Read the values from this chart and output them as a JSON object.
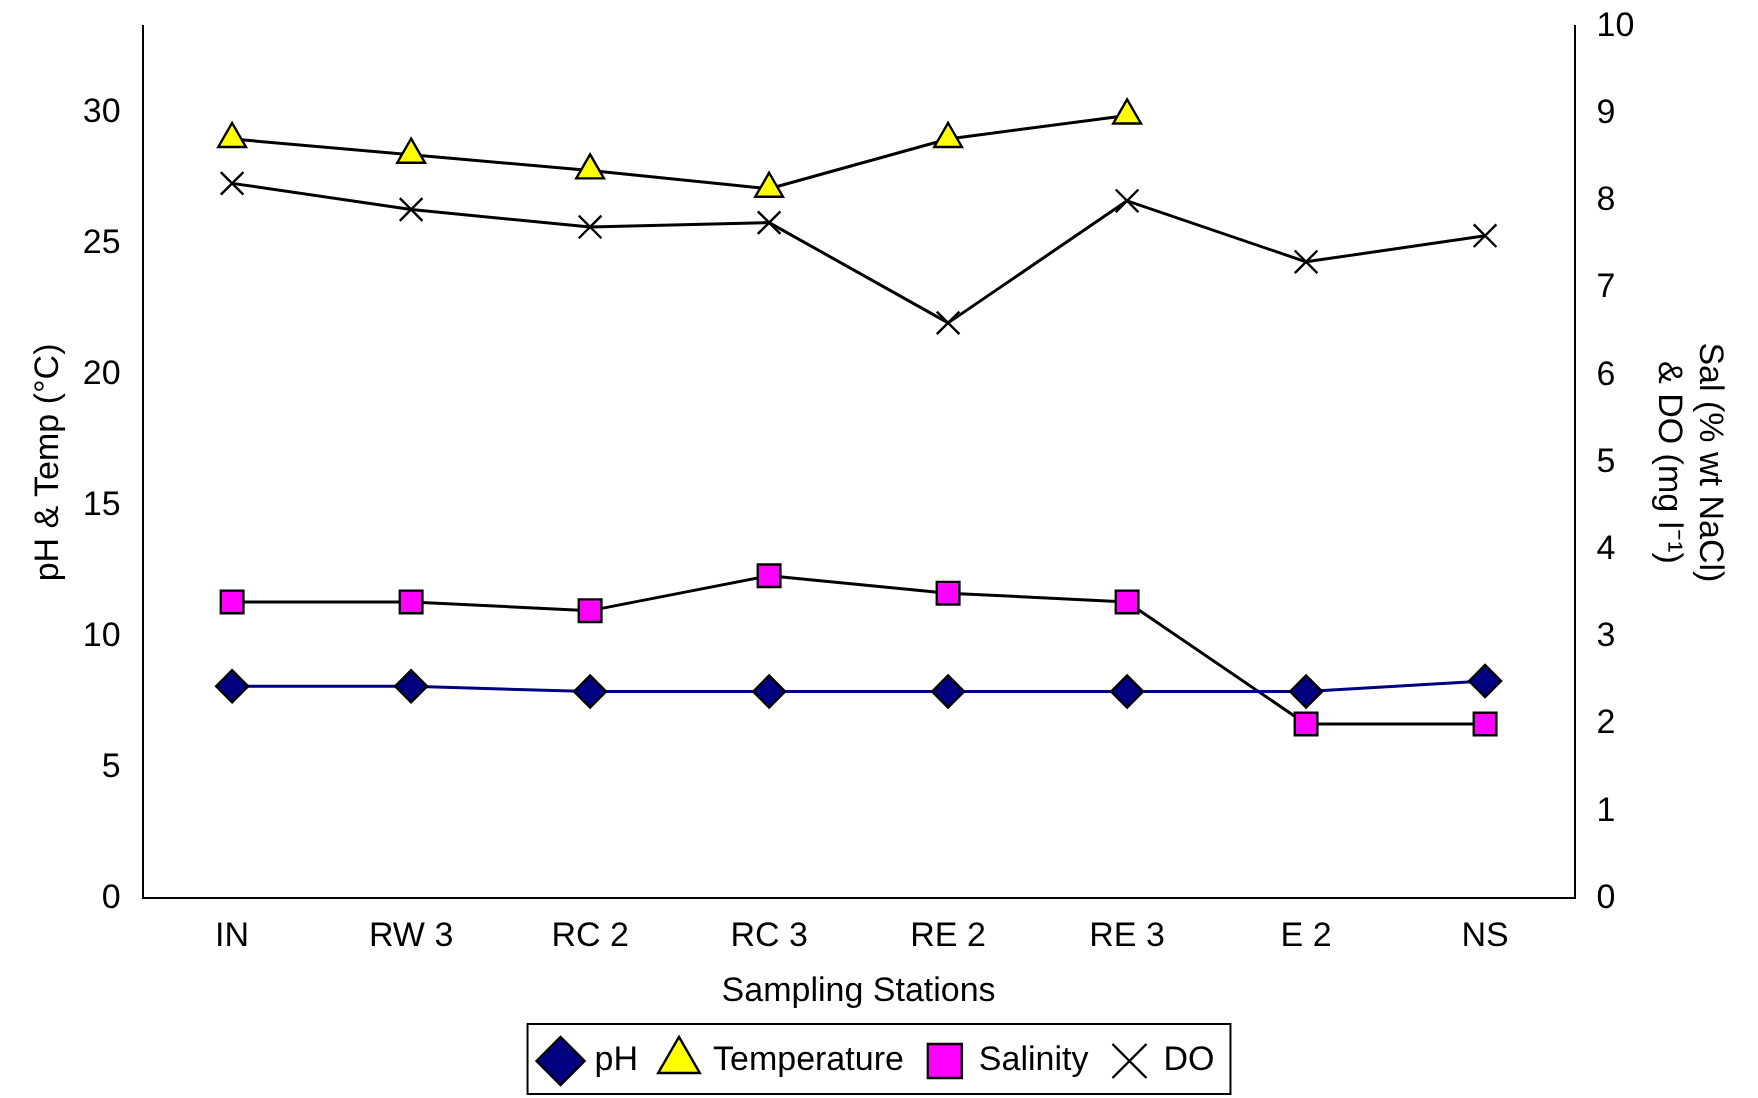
{
  "chart_data": {
    "type": "line",
    "xlabel": "Sampling Stations",
    "ylabel": "pH & Temp (°C)",
    "y2label": "Sal (% wt NaCl) & DO (mg l⁻¹)",
    "categories": [
      "IN",
      "RW 3",
      "RC 2",
      "RC 3",
      "RE 2",
      "RE 3",
      "E 2",
      "NS"
    ],
    "series": [
      {
        "name": "pH",
        "color": "#000080",
        "marker": "diamond",
        "values": [
          8.1,
          8.1,
          7.9,
          7.9,
          7.9,
          7.9,
          7.9,
          8.3
        ]
      },
      {
        "name": "Temperature",
        "color": "#ffff00",
        "marker": "triangle",
        "values": [
          29.0,
          28.4,
          27.8,
          27.1,
          29.0,
          29.9,
          null,
          null
        ]
      },
      {
        "name": "Salinity",
        "color": "#ff00ff",
        "marker": "square",
        "axis": "y2",
        "values": [
          3.4,
          3.4,
          3.3,
          3.7,
          3.5,
          3.4,
          2.0,
          2.0
        ]
      },
      {
        "name": "DO",
        "color": "#000000",
        "marker": "cross",
        "axis": "y2",
        "values": [
          8.2,
          7.9,
          7.7,
          7.75,
          6.6,
          8.0,
          7.3,
          7.6
        ]
      }
    ],
    "ylim": [
      0,
      33.3
    ],
    "yticks": [
      0,
      5,
      10,
      15,
      20,
      25,
      30
    ],
    "y2lim": [
      0,
      10
    ],
    "y2ticks": [
      0,
      1,
      2,
      3,
      4,
      5,
      6,
      7,
      8,
      9,
      10
    ],
    "grid": false,
    "legend": "bottom"
  }
}
